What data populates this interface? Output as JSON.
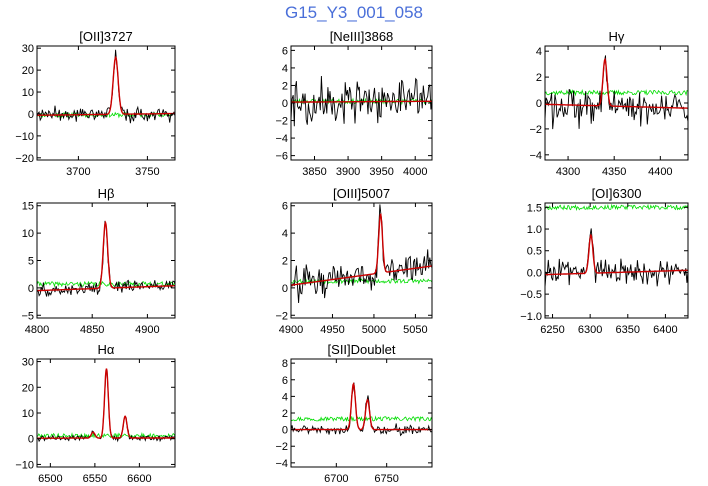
{
  "page": {
    "title": "G15_Y3_001_058"
  },
  "colors": {
    "title": "#4a6fd9",
    "data": "#000000",
    "fit": "#cc0000",
    "error": "#00dd00"
  },
  "chart_data": [
    {
      "type": "line",
      "title": "[OII]3727",
      "xlim": [
        3670,
        3770
      ],
      "ylim": [
        -21,
        31
      ],
      "xticks": [
        3700,
        3750
      ],
      "yticks": [
        -20,
        -10,
        0,
        10,
        20,
        30
      ],
      "ytick_labels": [
        "−20",
        "−10",
        "0",
        "10",
        "20",
        "30"
      ],
      "line": {
        "center": 3727,
        "amp": 26,
        "sigma": 1.8
      },
      "continuum": {
        "start": -0.6,
        "end": 0.2
      },
      "noise": 2.4,
      "error_level": -0.4,
      "seed": 11
    },
    {
      "type": "line",
      "title": "[NeIII]3868",
      "xlim": [
        3815,
        4025
      ],
      "ylim": [
        -6.5,
        6.5
      ],
      "xticks": [
        3850,
        3900,
        3950,
        4000
      ],
      "yticks": [
        -6,
        -4,
        -2,
        0,
        2,
        4,
        6
      ],
      "ytick_labels": [
        "−6",
        "−4",
        "−2",
        "0",
        "2",
        "4",
        "6"
      ],
      "continuum": {
        "start": 0.1,
        "end": 0.2
      },
      "noise": 1.7,
      "error_level": 0.2,
      "seed": 23
    },
    {
      "type": "line",
      "title": "Hγ",
      "xlim": [
        4275,
        4430
      ],
      "ylim": [
        -4.4,
        4.4
      ],
      "xticks": [
        4300,
        4350,
        4400
      ],
      "yticks": [
        -4,
        -2,
        0,
        2,
        4
      ],
      "ytick_labels": [
        "−4",
        "−2",
        "0",
        "2",
        "4"
      ],
      "line": {
        "center": 4340,
        "amp": 3.6,
        "sigma": 2.2
      },
      "continuum": {
        "start": -0.1,
        "end": -0.4
      },
      "noise": 1.0,
      "error_level": 0.8,
      "seed": 37
    },
    {
      "type": "line",
      "title": "Hβ",
      "xlim": [
        4800,
        4925
      ],
      "ylim": [
        -5.5,
        15.5
      ],
      "xticks": [
        4800,
        4850,
        4900
      ],
      "yticks": [
        -5,
        0,
        5,
        10,
        15
      ],
      "ytick_labels": [
        "−5",
        "0",
        "5",
        "10",
        "15"
      ],
      "line": {
        "center": 4862,
        "amp": 12,
        "sigma": 2.0
      },
      "continuum": {
        "start": -0.5,
        "end": 0.4
      },
      "noise": 0.9,
      "error_level": 0.7,
      "seed": 41
    },
    {
      "type": "line",
      "title": "[OIII]5007",
      "xlim": [
        4900,
        5070
      ],
      "ylim": [
        -2.2,
        6.2
      ],
      "xticks": [
        4900,
        4950,
        5000,
        5050
      ],
      "yticks": [
        -2,
        0,
        2,
        4,
        6
      ],
      "ytick_labels": [
        "−2",
        "0",
        "2",
        "4",
        "6"
      ],
      "line": {
        "center": 5008,
        "amp": 4.3,
        "sigma": 2.3
      },
      "continuum": {
        "start": 0.2,
        "end": 1.6
      },
      "noise": 0.8,
      "error_level": 0.5,
      "seed": 53
    },
    {
      "type": "line",
      "title": "[OI]6300",
      "xlim": [
        6240,
        6430
      ],
      "ylim": [
        -1.05,
        1.6
      ],
      "xticks": [
        6250,
        6300,
        6350,
        6400
      ],
      "yticks": [
        -1.0,
        -0.5,
        0.0,
        0.5,
        1.0,
        1.5
      ],
      "ytick_labels": [
        "−1.0",
        "−0.5",
        "0.0",
        "0.5",
        "1.0",
        "1.5"
      ],
      "line": {
        "center": 6301,
        "amp": 0.88,
        "sigma": 2.6
      },
      "continuum": {
        "start": -0.05,
        "end": 0.05
      },
      "noise": 0.23,
      "error_level": 1.5,
      "seed": 67
    },
    {
      "type": "line",
      "title": "Hα",
      "xlim": [
        6485,
        6640
      ],
      "ylim": [
        -11,
        31
      ],
      "xticks": [
        6500,
        6550,
        6600
      ],
      "yticks": [
        -10,
        0,
        10,
        20,
        30
      ],
      "ytick_labels": [
        "−10",
        "0",
        "10",
        "20",
        "30"
      ],
      "line": {
        "center": 6563,
        "amp": 27,
        "sigma": 2.1
      },
      "line2": {
        "center": 6584,
        "amp": 8.5,
        "sigma": 2.1
      },
      "line3": {
        "center": 6548,
        "amp": 2.3,
        "sigma": 2.1
      },
      "continuum": {
        "start": 0.2,
        "end": 0.3
      },
      "noise": 0.8,
      "error_level": 1.2,
      "seed": 79
    },
    {
      "type": "line",
      "title": "[SII]Doublet",
      "xlim": [
        6655,
        6795
      ],
      "ylim": [
        -4.5,
        8.5
      ],
      "xticks": [
        6700,
        6750
      ],
      "yticks": [
        -4,
        -2,
        0,
        2,
        4,
        6,
        8
      ],
      "ytick_labels": [
        "−4",
        "−2",
        "0",
        "2",
        "4",
        "6",
        "8"
      ],
      "line": {
        "center": 6717,
        "amp": 5.5,
        "sigma": 2.0
      },
      "line2": {
        "center": 6731,
        "amp": 3.6,
        "sigma": 2.0
      },
      "continuum": {
        "start": 0.0,
        "end": 0.0
      },
      "noise": 0.45,
      "error_level": 1.3,
      "seed": 97
    }
  ]
}
